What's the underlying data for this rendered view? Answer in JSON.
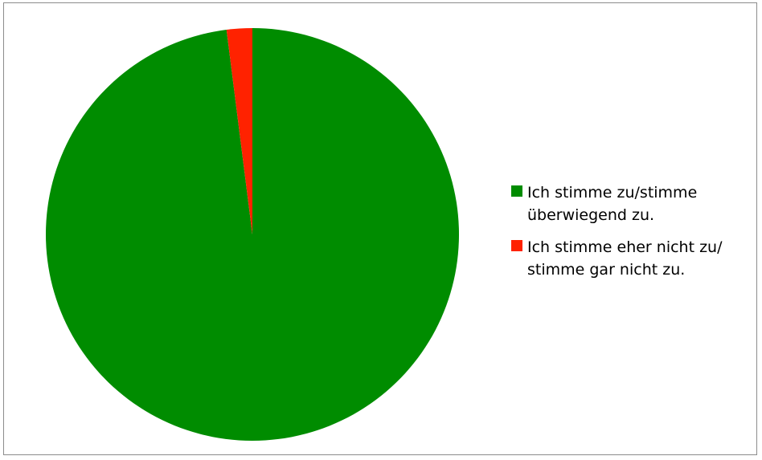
{
  "chart_data": {
    "type": "pie",
    "series": [
      {
        "name": "Ich stimme zu/stimme\nüberwiegend zu.",
        "value": 98,
        "color": "#008c00"
      },
      {
        "name": "Ich stimme eher nicht zu/\nstimme gar nicht zu.",
        "value": 2,
        "color": "#ff2200"
      }
    ],
    "legend_position": "right",
    "start_angle_deg": 0,
    "direction": "clockwise"
  }
}
